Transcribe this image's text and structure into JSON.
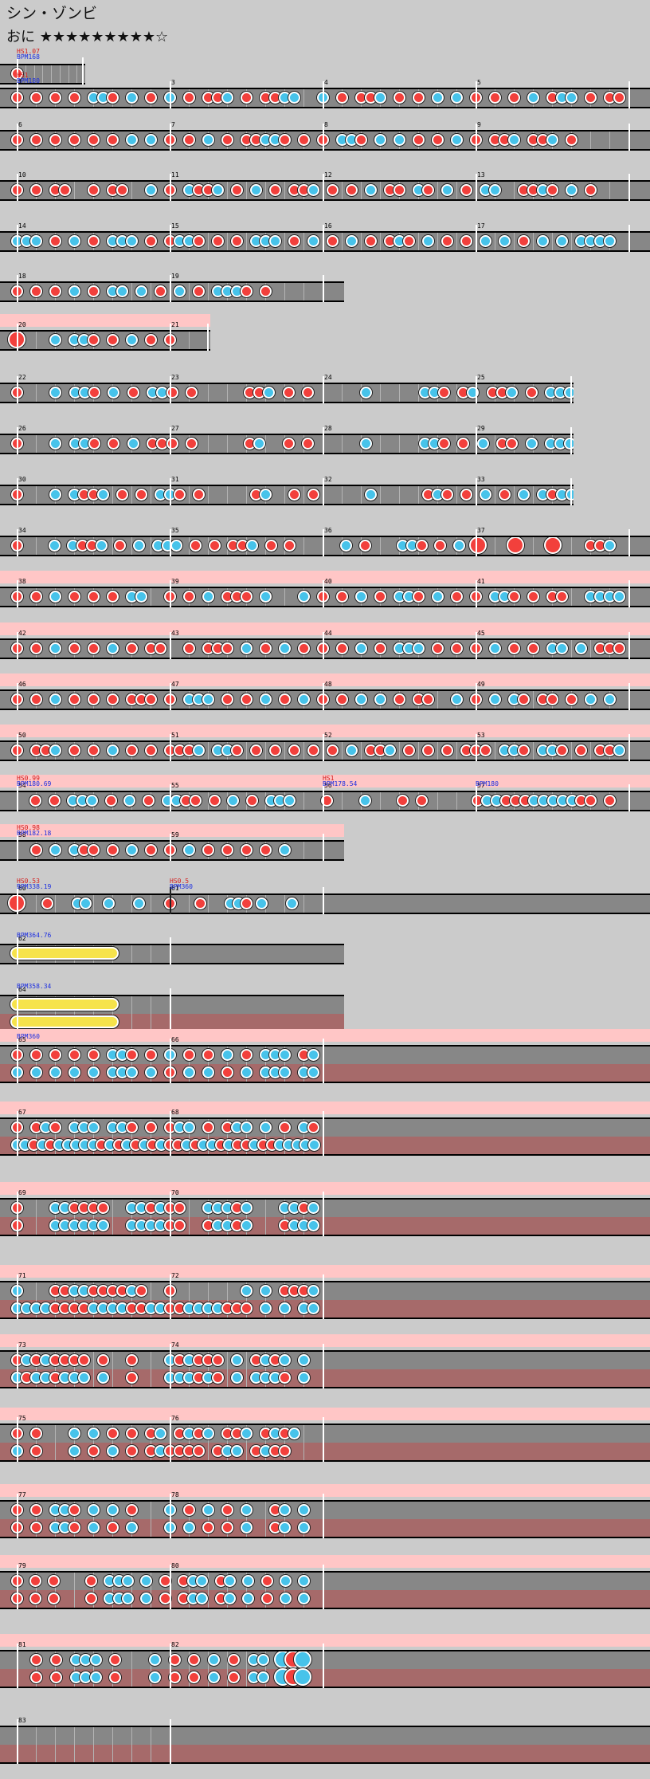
{
  "song": {
    "title": "シン・ゾンビ"
  },
  "course": {
    "name": "おに",
    "stars": "★★★★★★★★★☆"
  },
  "colors": {
    "background": "#cbcbcb",
    "lane": "#878787",
    "lane_p2": "#a66a6a",
    "gogo": "#ffc6c6",
    "don": "#f2403c",
    "ka": "#47c3ea",
    "roll": "#f6e34b"
  },
  "chart_rows": [
    {
      "measures": [
        {
          "num": ""
        }
      ],
      "events": [
        {
          "type": "hs",
          "text": "HS1.07"
        },
        {
          "type": "bpm",
          "text": "BPM168"
        }
      ],
      "notes": "D..............."
    },
    {
      "measures": [
        {
          "num": "1"
        },
        {
          "num": "3"
        },
        {
          "num": "4"
        },
        {
          "num": "5"
        }
      ],
      "events": [
        {
          "type": "hs",
          "text": "HS1"
        },
        {
          "type": "bpm",
          "text": "BPM180"
        }
      ],
      "notes": "D.D.D.D.KKD.K.D.K.D.DDK.D.DDKK..K.D.DDK.D.D.K.K.D.D.D.K.DKK.D.DD"
    },
    {
      "measures": [
        {
          "num": "6"
        },
        {
          "num": "7"
        },
        {
          "num": "8"
        },
        {
          "num": "9"
        }
      ],
      "notes": "D.D.D.D.D.D.K.K.D.D.K.D.DDKKD.D.D.KKD.K.K.D.D.K.D.DDK.DDK.D....."
    },
    {
      "measures": [
        {
          "num": "10"
        },
        {
          "num": "11"
        },
        {
          "num": "12"
        },
        {
          "num": "13"
        }
      ],
      "notes": "D.D.DD..D.DD..K.D.KDDK.D.K.D.DDK.D.D.K.DD.KD.K.D.KK..DDKD.K.D..."
    },
    {
      "measures": [
        {
          "num": "14"
        },
        {
          "num": "15"
        },
        {
          "num": "16"
        },
        {
          "num": "17"
        }
      ],
      "notes": "KKK.D.K.D.KKK.D.DKKD.D.D.KKK.D.K.D.K.D.DKD.K.D.D.K.K.D.K.K.KKKK."
    },
    {
      "measures": [
        {
          "num": "18"
        },
        {
          "num": "19"
        }
      ],
      "notes": "D.D.D.K.D.KK.K.D.K.D.KKKD.D....."
    },
    {
      "gogo": true,
      "measures": [
        {
          "num": "20"
        },
        {
          "num": "21"
        }
      ],
      "notes": "B...K.KKD.D.K.D.D.......DK......"
    },
    {
      "measures": [
        {
          "num": "22"
        },
        {
          "num": "23"
        },
        {
          "num": "24"
        },
        {
          "num": "25"
        }
      ],
      "notes": "D...K.KKD.K.D.KKD.D.....DDK.D.D.....K.....KKD.DK.DDK.D.KKK....."
    },
    {
      "measures": [
        {
          "num": "26"
        },
        {
          "num": "27"
        },
        {
          "num": "28"
        },
        {
          "num": "29"
        }
      ],
      "notes": "D...K.KKD.D.K.DDD.D.....DK..D.D.....K.....KKD.D.K.DD.K.KKK....."
    },
    {
      "measures": [
        {
          "num": "30"
        },
        {
          "num": "31"
        },
        {
          "num": "32"
        },
        {
          "num": "33"
        }
      ],
      "notes": "D...K.KDDK.D.D.KKD.D.....DK..D.D.....K.....DKD.D.K.D.K.KDKK....."
    },
    {
      "measures": [
        {
          "num": "34"
        },
        {
          "num": "35"
        },
        {
          "num": "36"
        },
        {
          "num": "37"
        }
      ],
      "notes": "D...K.KDDK.D.K.KKK.D.D.DDK.D.D.....K.D...KKD.D.K.B...B...B...DDK."
    },
    {
      "gogo": true,
      "measures": [
        {
          "num": "38"
        },
        {
          "num": "39"
        },
        {
          "num": "40"
        },
        {
          "num": "41"
        }
      ],
      "notes": "D.D.K.D.D.D.KK..D.D.K.DDD.K...K.D.D.K.D.KKD.K.D.D.KKD.D.DD..KKKK"
    },
    {
      "gogo": true,
      "measures": [
        {
          "num": "42"
        },
        {
          "num": "43"
        },
        {
          "num": "44"
        },
        {
          "num": "45"
        }
      ],
      "notes": "D.D.K.D.D.K.D.DD..D.DDD.K.D.K.D.D.D.K.D.KKK.D.D.D.K.D.D.KK.K.DDD"
    },
    {
      "gogo": true,
      "measures": [
        {
          "num": "46"
        },
        {
          "num": "47"
        },
        {
          "num": "48"
        },
        {
          "num": "49"
        }
      ],
      "notes": "D.D.K.D.D.D.DDD.D.KKK.D.D.K.D.K.D.D.K.K.D.DD..K.D.K.KD.DD.D.K.K."
    },
    {
      "gogo": true,
      "measures": [
        {
          "num": "50"
        },
        {
          "num": "51"
        },
        {
          "num": "52"
        },
        {
          "num": "53"
        }
      ],
      "notes": "D.DDK.D.D.K.D.D.DDDK.KKD.D.D.D.D.D.K.DDK.D.D.D.DDD.KKD.KKD.D.DDK"
    },
    {
      "gogo": true,
      "measures": [
        {
          "num": "54"
        },
        {
          "num": "55"
        },
        {
          "num": "56"
        },
        {
          "num": "57"
        }
      ],
      "events": [
        {
          "type": "hs",
          "text": "HS0.99"
        },
        {
          "type": "bpm",
          "text": "BPM180.69"
        },
        {
          "type": "hs",
          "text": "HS1"
        },
        {
          "type": "bpm",
          "text": "BPM178.54"
        },
        {
          "type": "bpm",
          "text": "BPM180"
        }
      ],
      "notes": "..D.D.KKK.D.K.D.KKDD.D.K.D.KKK...D...K...D.D.....DKKDDDKKKKKDD.D."
    },
    {
      "gogo": true,
      "measures": [
        {
          "num": "58"
        },
        {
          "num": "59"
        }
      ],
      "events": [
        {
          "type": "hs",
          "text": "HS0.98"
        },
        {
          "type": "bpm",
          "text": "BPM182.18"
        }
      ],
      "notes": "..D.K.KDD.D.K.D.D.K.D.D.D.D.K..."
    },
    {
      "measures": [
        {
          "num": "60"
        },
        {
          "num": "61"
        }
      ],
      "events": [
        {
          "type": "hs",
          "text": "HS0.53"
        },
        {
          "type": "bpm",
          "text": "BPM338.19"
        },
        {
          "type": "hs",
          "text": "HS0.5"
        },
        {
          "type": "bpm",
          "text": "BPM360"
        }
      ],
      "notes": "B...D...KK..K...K...D...D...KKD.K...K..."
    },
    {
      "measures": [
        {
          "num": "62"
        }
      ],
      "events": [
        {
          "type": "bpm",
          "text": "BPM364.76"
        }
      ],
      "rolls": [
        {
          "start": 0,
          "end": 10
        }
      ],
      "notes": ""
    },
    {
      "measures": [
        {
          "num": "64"
        }
      ],
      "events": [
        {
          "type": "bpm",
          "text": "BPM358.34"
        }
      ],
      "double": true,
      "rolls": [
        {
          "start": 0,
          "end": 10
        }
      ],
      "rolls2": [
        {
          "start": 0,
          "end": 10
        }
      ],
      "notes": ""
    },
    {
      "gogo": true,
      "double": true,
      "measures": [
        {
          "num": "65"
        },
        {
          "num": "66"
        }
      ],
      "events": [
        {
          "type": "bpm",
          "text": "BPM360"
        }
      ],
      "notes": "D.D.D.D.D.KKD.D.K.D.D.K.D.KKK.DK",
      "notes2": "K.K.K.K.K.KKK.K.D.K.K.D.K.KKK.KK"
    },
    {
      "gogo": true,
      "double": true,
      "measures": [
        {
          "num": "67"
        },
        {
          "num": "68"
        }
      ],
      "notes": "D.DKD.KKK.KKD.D.DKK.D.DKK.K.D.KD",
      "notes2": "KKDKDKKKKKDKDKDKDKDDKDKKDKDDKDDKKKKK"
    },
    {
      "gogo": true,
      "double": true,
      "measures": [
        {
          "num": "69"
        },
        {
          "num": "70"
        }
      ],
      "notes": "D...KKDDDD..KKDKDD..KKKDK...KKDK",
      "notes2": "D...KKKKKK..KKKKDD..DKKDK...DKKK"
    },
    {
      "gogo": true,
      "double": true,
      "measures": [
        {
          "num": "71"
        },
        {
          "num": "72"
        }
      ],
      "notes": "K...DDKKDDDDKD..D.......K.K.DDDK",
      "notes2": "KKKKDDDDKKKKDDKKDDKKKKDDD.K.K.KK"
    },
    {
      "gogo": true,
      "double": true,
      "measures": [
        {
          "num": "73"
        },
        {
          "num": "74"
        }
      ],
      "notes": "DKDKDDDD.D..D...KDKDDD.K.DKDK.K.",
      "notes2": "KDKKDKKK.K..D...KKKDKD.K.KKKD.K."
    },
    {
      "gogo": true,
      "double": true,
      "measures": [
        {
          "num": "75"
        },
        {
          "num": "76"
        }
      ],
      "notes": "D.D...K.K.D.D.DK.DKDK.DDK.DKDK..",
      "notes2": "K.D...K.D.K.D.DKDDDD.DKK.DKDD..."
    },
    {
      "gogo": true,
      "double": true,
      "measures": [
        {
          "num": "77"
        },
        {
          "num": "78"
        }
      ],
      "notes": "D.D.KKD.K.K.D...K.D.K.D.K..DK.K.",
      "notes2": "D.D.KKD.K.D.K...K.K.D.D.K..DK.K."
    },
    {
      "gogo": true,
      "double": true,
      "measures": [
        {
          "num": "79"
        },
        {
          "num": "80"
        }
      ],
      "notes": "D.D.D...D.KKK.K.D.DKK.DK.K.D.K.K.",
      "notes2": "D.D.D...D.KKK.K.D.DKK.DK.K.D.K.K."
    },
    {
      "gogo": true,
      "double": true,
      "measures": [
        {
          "num": "81"
        },
        {
          "num": "82"
        }
      ],
      "notes": "..D.D.KKK.D...K.D.D.K.D.KK.CEC.",
      "notes2": "..D.D.KKK.D...K.D.D.K.D.KK.CEC."
    },
    {
      "double": true,
      "measures": [
        {
          "num": "83"
        }
      ],
      "notes": "",
      "notes2": ""
    }
  ]
}
